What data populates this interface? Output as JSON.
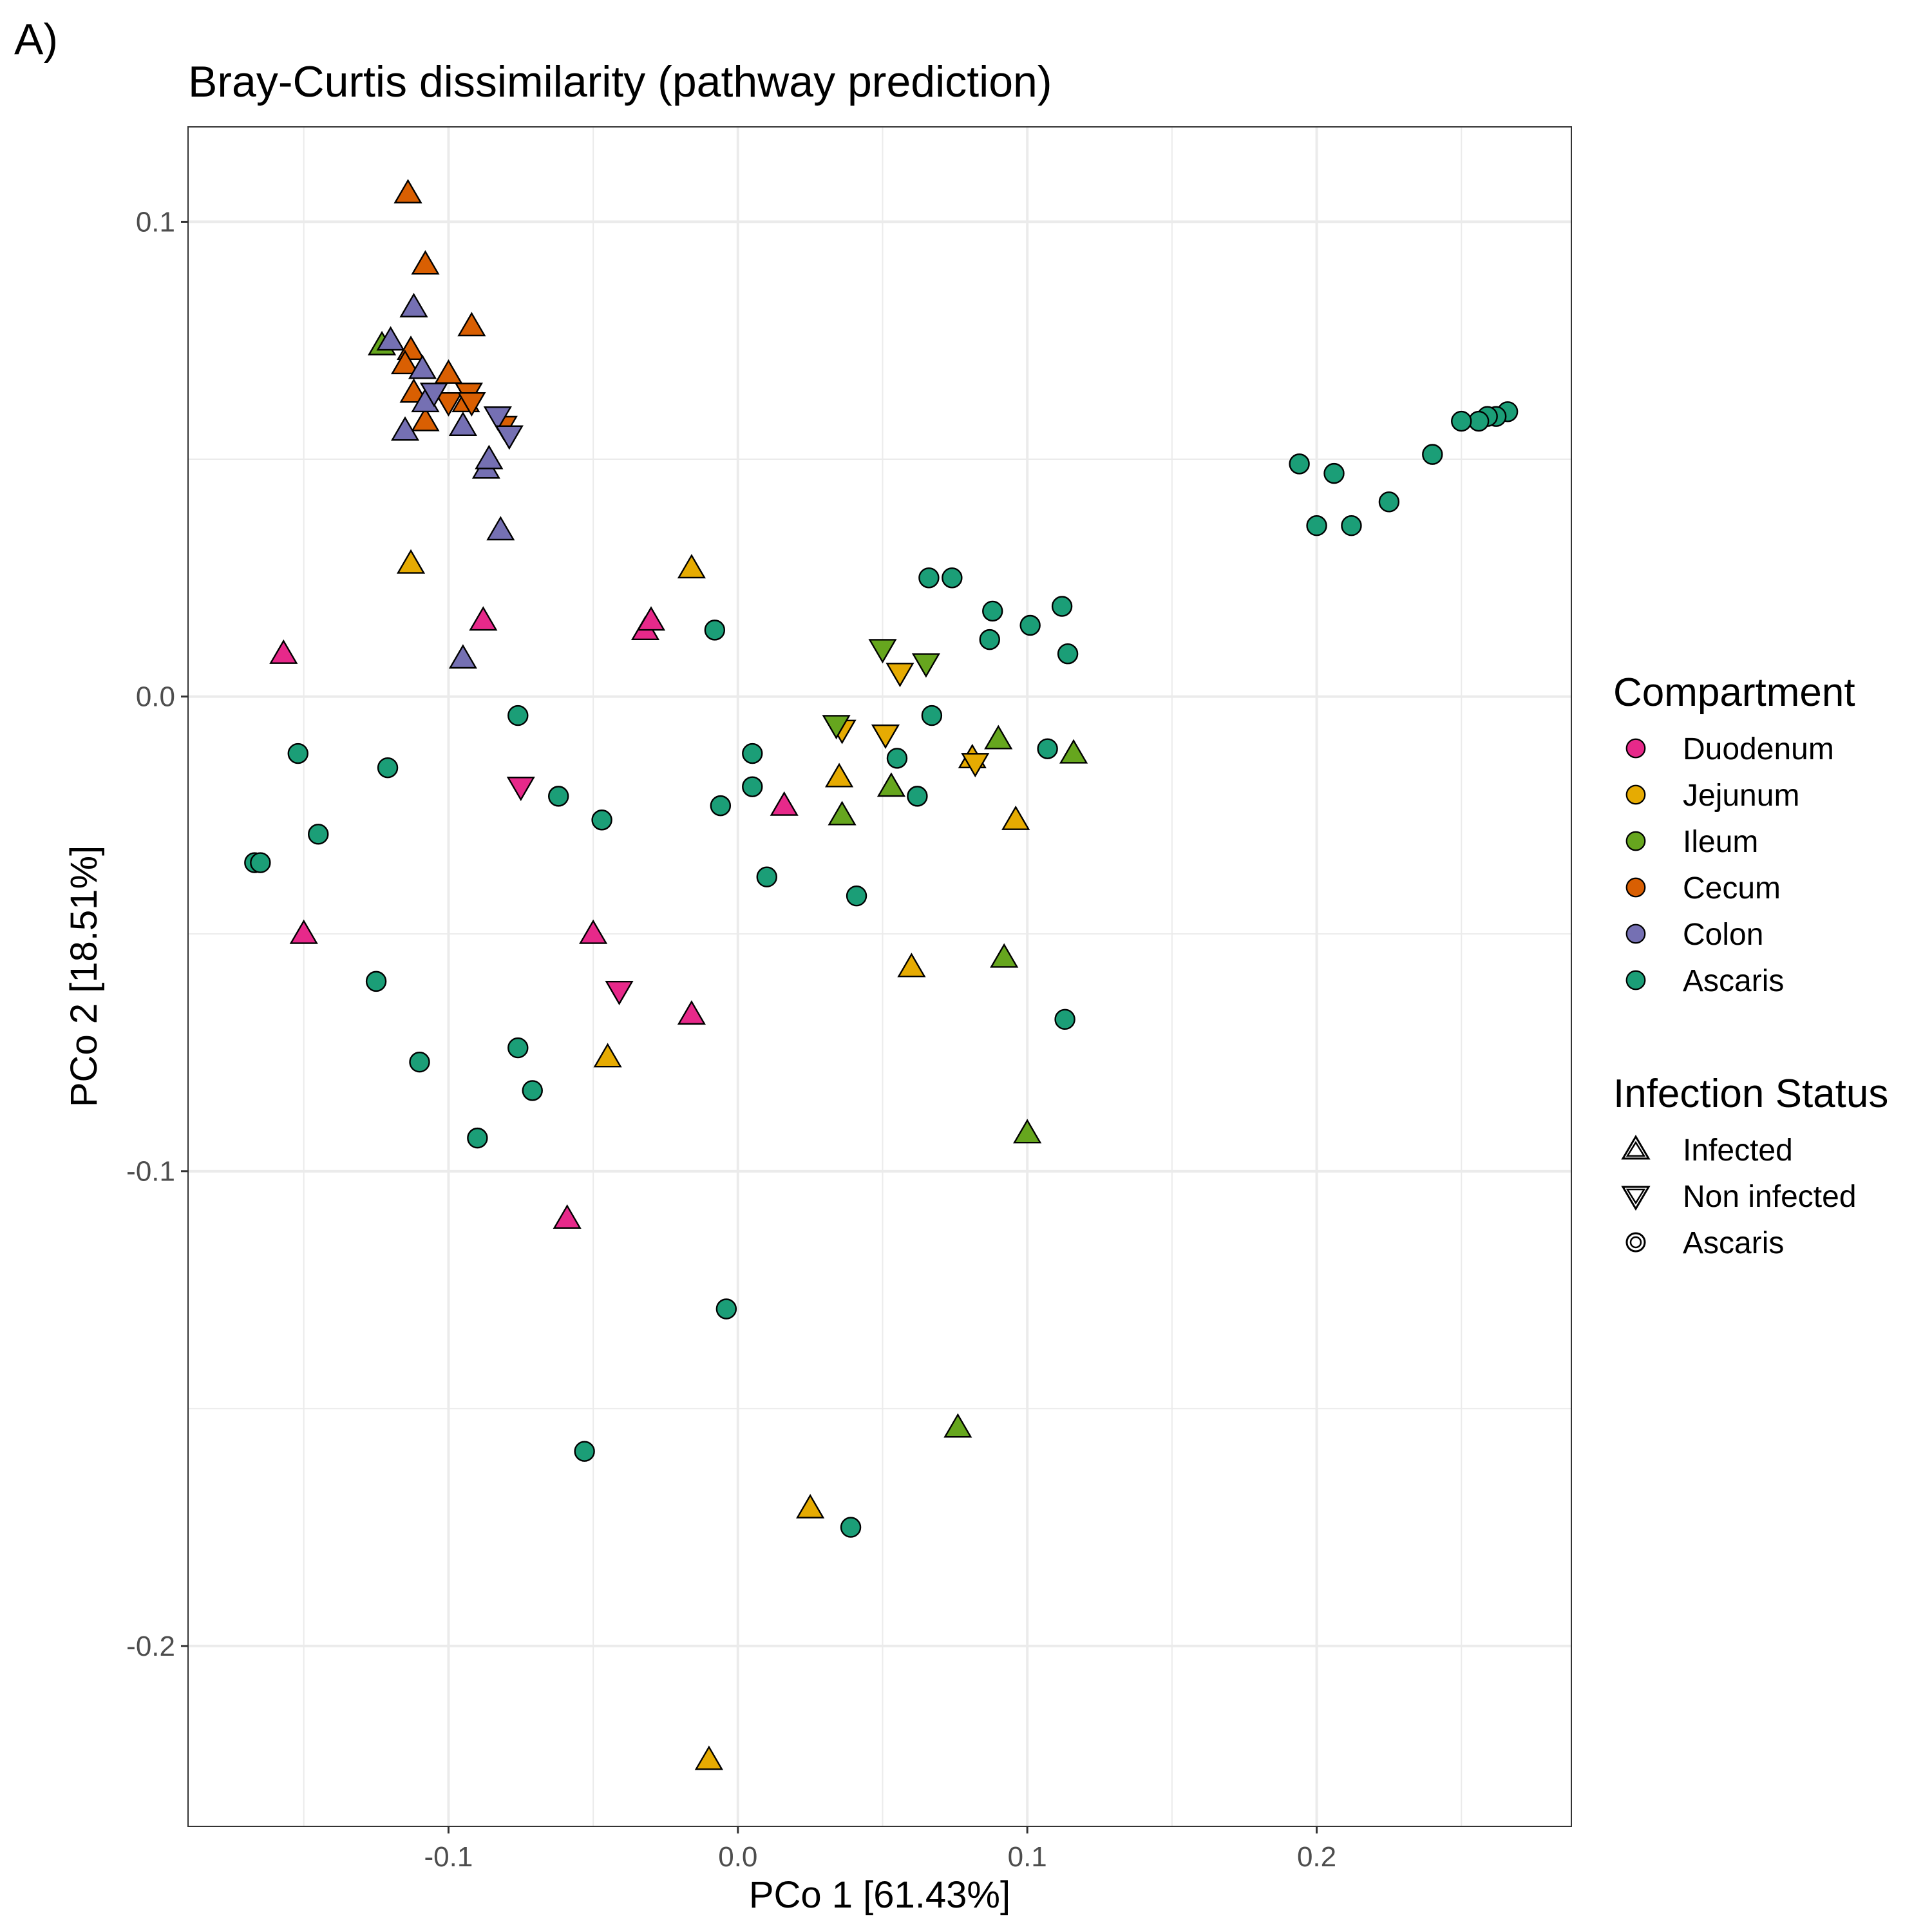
{
  "panel_label": "A)",
  "chart_data": {
    "type": "scatter",
    "title": "Bray-Curtis dissimilarity (pathway prediction)",
    "xlabel": "PCo 1 [61.43%]",
    "ylabel": "PCo 2 [18.51%]",
    "xlim": [
      -0.19,
      0.288
    ],
    "ylim": [
      -0.238,
      0.12
    ],
    "x_ticks": [
      -0.1,
      0.0,
      0.1,
      0.2
    ],
    "x_tick_labels": [
      "-0.1",
      "0.0",
      "0.1",
      "0.2"
    ],
    "y_ticks": [
      0.1,
      0.0,
      -0.1,
      -0.2
    ],
    "y_tick_labels": [
      "0.1",
      "0.0",
      "-0.1",
      "-0.2"
    ],
    "grid": true,
    "legend_position": "right",
    "colors": {
      "Duodenum": "#e7298a",
      "Jejunum": "#e6ab02",
      "Ileum": "#66a61e",
      "Cecum": "#d95f02",
      "Colon": "#7570b3",
      "Ascaris": "#1b9e77"
    },
    "legends": {
      "compartment": {
        "title": "Compartment",
        "items": [
          {
            "label": "Duodenum",
            "group": "Duodenum"
          },
          {
            "label": "Jejunum",
            "group": "Jejunum"
          },
          {
            "label": "Ileum",
            "group": "Ileum"
          },
          {
            "label": "Cecum",
            "group": "Cecum"
          },
          {
            "label": "Colon",
            "group": "Colon"
          },
          {
            "label": "Ascaris",
            "group": "Ascaris"
          }
        ]
      },
      "infection_status": {
        "title": "Infection Status",
        "items": [
          {
            "label": "Infected",
            "shape": "up"
          },
          {
            "label": "Non infected",
            "shape": "down"
          },
          {
            "label": "Ascaris",
            "shape": "circle"
          }
        ]
      }
    },
    "series": [
      {
        "name": "Duodenum",
        "shape": "up",
        "points": [
          [
            -0.157,
            0.009
          ],
          [
            -0.15,
            -0.05
          ],
          [
            -0.088,
            0.016
          ],
          [
            -0.032,
            0.014
          ],
          [
            -0.03,
            0.016
          ],
          [
            -0.05,
            -0.05
          ],
          [
            -0.016,
            -0.067
          ],
          [
            0.016,
            -0.023
          ],
          [
            -0.059,
            -0.11
          ]
        ]
      },
      {
        "name": "Duodenum",
        "shape": "down",
        "points": [
          [
            -0.075,
            -0.019
          ],
          [
            -0.041,
            -0.062
          ]
        ]
      },
      {
        "name": "Jejunum",
        "shape": "up",
        "points": [
          [
            -0.113,
            0.028
          ],
          [
            -0.016,
            0.027
          ],
          [
            0.035,
            -0.017
          ],
          [
            0.06,
            -0.057
          ],
          [
            0.081,
            -0.013
          ],
          [
            0.096,
            -0.026
          ],
          [
            -0.045,
            -0.076
          ],
          [
            0.025,
            -0.171
          ],
          [
            -0.01,
            -0.224
          ]
        ]
      },
      {
        "name": "Jejunum",
        "shape": "down",
        "points": [
          [
            0.056,
            0.005
          ],
          [
            0.036,
            -0.007
          ],
          [
            0.051,
            -0.008
          ],
          [
            0.082,
            -0.014
          ]
        ]
      },
      {
        "name": "Ileum",
        "shape": "up",
        "points": [
          [
            -0.123,
            0.074
          ],
          [
            0.036,
            -0.025
          ],
          [
            0.053,
            -0.019
          ],
          [
            0.09,
            -0.009
          ],
          [
            0.116,
            -0.012
          ],
          [
            0.092,
            -0.055
          ],
          [
            0.1,
            -0.092
          ],
          [
            0.076,
            -0.154
          ]
        ]
      },
      {
        "name": "Ileum",
        "shape": "down",
        "points": [
          [
            0.05,
            0.01
          ],
          [
            0.065,
            0.007
          ],
          [
            0.034,
            -0.006
          ]
        ]
      },
      {
        "name": "Cecum",
        "shape": "up",
        "points": [
          [
            -0.114,
            0.106
          ],
          [
            -0.108,
            0.091
          ],
          [
            -0.092,
            0.078
          ],
          [
            -0.113,
            0.073
          ],
          [
            -0.115,
            0.07
          ],
          [
            -0.1,
            0.068
          ],
          [
            -0.112,
            0.064
          ],
          [
            -0.108,
            0.058
          ],
          [
            -0.094,
            0.062
          ]
        ]
      },
      {
        "name": "Cecum",
        "shape": "down",
        "points": [
          [
            -0.1,
            0.062
          ],
          [
            -0.093,
            0.064
          ],
          [
            -0.092,
            0.062
          ],
          [
            -0.081,
            0.057
          ]
        ]
      },
      {
        "name": "Colon",
        "shape": "up",
        "points": [
          [
            -0.112,
            0.082
          ],
          [
            -0.12,
            0.075
          ],
          [
            -0.109,
            0.069
          ],
          [
            -0.108,
            0.062
          ],
          [
            -0.115,
            0.056
          ],
          [
            -0.095,
            0.057
          ],
          [
            -0.087,
            0.048
          ],
          [
            -0.086,
            0.05
          ],
          [
            -0.082,
            0.035
          ],
          [
            -0.095,
            0.008
          ]
        ]
      },
      {
        "name": "Colon",
        "shape": "down",
        "points": [
          [
            -0.105,
            0.064
          ],
          [
            -0.083,
            0.059
          ],
          [
            -0.079,
            0.055
          ]
        ]
      },
      {
        "name": "Ascaris",
        "shape": "circle",
        "points": [
          [
            0.266,
            0.06
          ],
          [
            0.262,
            0.059
          ],
          [
            0.259,
            0.059
          ],
          [
            0.256,
            0.058
          ],
          [
            0.25,
            0.058
          ],
          [
            0.24,
            0.051
          ],
          [
            0.194,
            0.049
          ],
          [
            0.206,
            0.047
          ],
          [
            0.225,
            0.041
          ],
          [
            0.2,
            0.036
          ],
          [
            0.212,
            0.036
          ],
          [
            0.066,
            0.025
          ],
          [
            0.074,
            0.025
          ],
          [
            0.088,
            0.018
          ],
          [
            0.112,
            0.019
          ],
          [
            0.101,
            0.015
          ],
          [
            0.087,
            0.012
          ],
          [
            0.114,
            0.009
          ],
          [
            -0.008,
            0.014
          ],
          [
            0.067,
            -0.004
          ],
          [
            0.005,
            -0.012
          ],
          [
            0.055,
            -0.013
          ],
          [
            0.107,
            -0.011
          ],
          [
            0.005,
            -0.019
          ],
          [
            0.062,
            -0.021
          ],
          [
            -0.006,
            -0.023
          ],
          [
            0.01,
            -0.038
          ],
          [
            0.041,
            -0.042
          ],
          [
            0.113,
            -0.068
          ],
          [
            -0.076,
            -0.004
          ],
          [
            -0.062,
            -0.021
          ],
          [
            -0.047,
            -0.026
          ],
          [
            -0.152,
            -0.012
          ],
          [
            -0.121,
            -0.015
          ],
          [
            -0.145,
            -0.029
          ],
          [
            -0.167,
            -0.035
          ],
          [
            -0.165,
            -0.035
          ],
          [
            -0.125,
            -0.06
          ],
          [
            -0.11,
            -0.077
          ],
          [
            -0.076,
            -0.074
          ],
          [
            -0.071,
            -0.083
          ],
          [
            -0.09,
            -0.093
          ],
          [
            -0.004,
            -0.129
          ],
          [
            -0.053,
            -0.159
          ],
          [
            0.039,
            -0.175
          ]
        ]
      }
    ]
  }
}
